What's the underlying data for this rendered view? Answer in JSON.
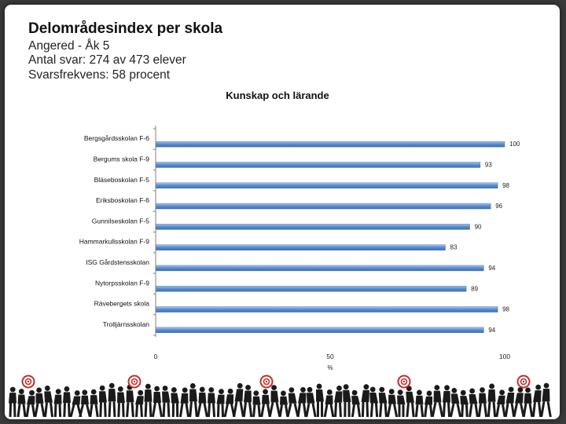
{
  "heading": "Delområdesindex per skola",
  "meta": {
    "line1": "Angered - Åk 5",
    "line2": "Antal svar: 274 av 473 elever",
    "line3": "Svarsfrekvens: 58 procent"
  },
  "colors": {
    "bar": "#5b8fd0",
    "bar_light": "#a9c6ee",
    "bar_dark": "#3d6fae",
    "axis": "#808080",
    "footer_silhouette": "#1a1a1a",
    "target_red": "#c0302b"
  },
  "chart_data": {
    "type": "bar",
    "orientation": "horizontal",
    "title": "Kunskap och lärande",
    "categories": [
      "Bergsgårdsskolan F-6",
      "Bergums skola F-9",
      "Bläsebоskolan F-5",
      "Eriksboskolan F-6",
      "Gunnilseskolan F-5",
      "Hammarkullsskolan F-9",
      "ISG Gårdstensskolan",
      "Nytorpsskolan F-9",
      "Rävebergets skola",
      "Trolljärnsskolan"
    ],
    "values": [
      100,
      93,
      98,
      96,
      90,
      83,
      94,
      89,
      98,
      94
    ],
    "value_labels": [
      "100",
      "93",
      "98",
      "96",
      "90",
      "83",
      "94",
      "89",
      "98",
      "94"
    ],
    "xlim": [
      0,
      100
    ],
    "x_ticks": [
      "0",
      "50",
      "100"
    ],
    "xlabel": "%",
    "ylabel": "",
    "grid": false,
    "legend": "none"
  }
}
